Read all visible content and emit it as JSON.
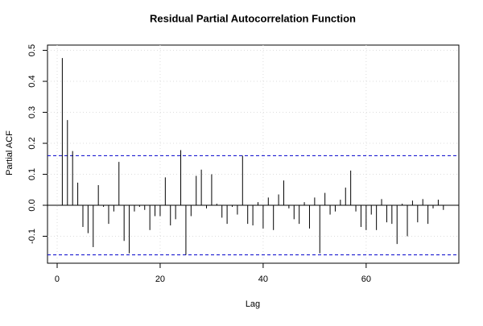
{
  "chart_data": {
    "type": "pacf",
    "title": "Residual Partial Autocorrelation Function",
    "xlabel": "Lag",
    "ylabel": "Partial ACF",
    "x": [
      1,
      2,
      3,
      4,
      5,
      6,
      7,
      8,
      9,
      10,
      11,
      12,
      13,
      14,
      15,
      16,
      17,
      18,
      19,
      20,
      21,
      22,
      23,
      24,
      25,
      26,
      27,
      28,
      29,
      30,
      31,
      32,
      33,
      34,
      35,
      36,
      37,
      38,
      39,
      40,
      41,
      42,
      43,
      44,
      45,
      46,
      47,
      48,
      49,
      50,
      51,
      52,
      53,
      54,
      55,
      56,
      57,
      58,
      59,
      60,
      61,
      62,
      63,
      64,
      65,
      66,
      67,
      68,
      69,
      70,
      71,
      72,
      73,
      74,
      75
    ],
    "values": [
      0.475,
      0.275,
      0.175,
      0.073,
      -0.07,
      -0.09,
      -0.135,
      0.065,
      -0.005,
      -0.06,
      -0.02,
      0.14,
      -0.115,
      -0.155,
      -0.02,
      -0.005,
      -0.015,
      -0.08,
      -0.035,
      -0.035,
      0.09,
      -0.065,
      -0.045,
      0.178,
      -0.16,
      -0.035,
      0.095,
      0.115,
      -0.01,
      0.1,
      0.005,
      -0.04,
      -0.06,
      -0.005,
      -0.03,
      0.16,
      -0.06,
      -0.065,
      0.01,
      -0.075,
      0.025,
      -0.08,
      0.035,
      0.08,
      -0.01,
      -0.045,
      -0.06,
      0.01,
      -0.075,
      0.025,
      -0.155,
      0.04,
      -0.03,
      -0.02,
      0.018,
      0.057,
      0.112,
      -0.02,
      -0.07,
      -0.08,
      -0.03,
      -0.08,
      0.02,
      -0.055,
      -0.06,
      -0.125,
      0.005,
      -0.1,
      0.015,
      -0.055,
      0.02,
      -0.06,
      -0.01,
      0.018,
      -0.015
    ],
    "color": "#000000",
    "conf_lines": [
      0.16,
      -0.16
    ],
    "conf_color": "#0000cc",
    "zero_line": 0,
    "xlim": [
      -1.875,
      78
    ],
    "ylim": [
      -0.187,
      0.517
    ],
    "xticks": [
      0,
      20,
      40,
      60
    ],
    "yticks": [
      -0.1,
      {
        "value": 0,
        "label": "0.0"
      },
      0.1,
      0.2,
      0.3,
      0.4,
      0.5
    ],
    "grid": true
  }
}
